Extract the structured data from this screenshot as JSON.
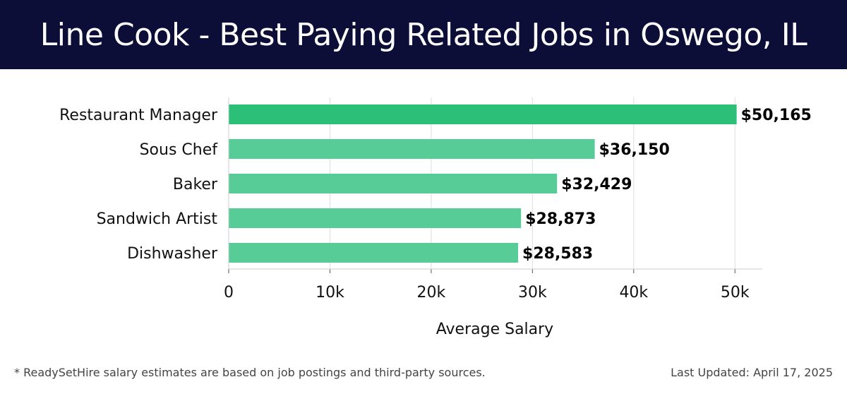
{
  "header": {
    "title": "Line Cook - Best Paying Related Jobs in Oswego, IL"
  },
  "footer": {
    "note": "* ReadySetHire salary estimates are based on job postings and third-party sources.",
    "updated": "Last Updated: April 17, 2025"
  },
  "chart_data": {
    "type": "bar",
    "orientation": "horizontal",
    "categories": [
      "Restaurant Manager",
      "Sous Chef",
      "Baker",
      "Sandwich Artist",
      "Dishwasher"
    ],
    "values": [
      50165,
      36150,
      32429,
      28873,
      28583
    ],
    "data_labels": [
      "$50,165",
      "$36,150",
      "$32,429",
      "$28,873",
      "$28,583"
    ],
    "xlabel": "Average Salary",
    "ylabel": "",
    "xlim": [
      0,
      52700
    ],
    "x_ticks": [
      0,
      10000,
      20000,
      30000,
      40000,
      50000
    ],
    "x_tick_labels": [
      "0",
      "10k",
      "20k",
      "30k",
      "40k",
      "50k"
    ],
    "grid": "vertical",
    "colors": {
      "top_bar": "#2bbf77",
      "bar": "#57cc97",
      "header_bg": "#0c0e38"
    }
  }
}
